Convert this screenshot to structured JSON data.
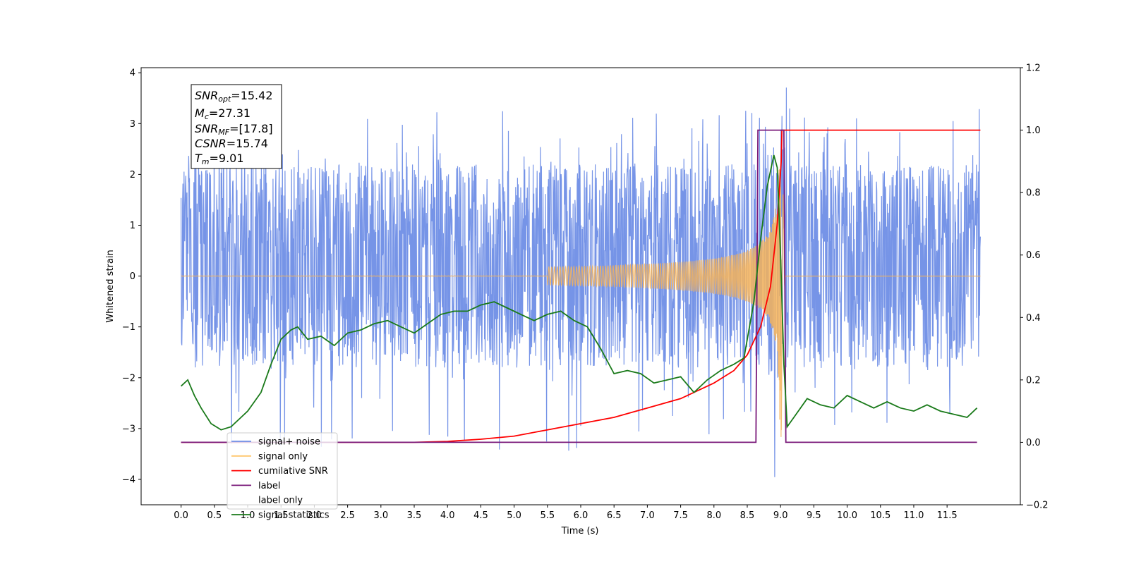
{
  "chart_data": {
    "type": "line",
    "xlabel": "Time (s)",
    "ylabel": "Whitened strain",
    "xlim": [
      -0.6,
      12.6
    ],
    "ylim": [
      -4.5,
      4.1
    ],
    "y2lim": [
      -0.2,
      1.2
    ],
    "x_ticks": [
      "0.0",
      "0.5",
      "1.0",
      "1.5",
      "2.0",
      "2.5",
      "3.0",
      "3.5",
      "4.0",
      "4.5",
      "5.0",
      "5.5",
      "6.0",
      "6.5",
      "7.0",
      "7.5",
      "8.0",
      "8.5",
      "9.0",
      "9.5",
      "10.0",
      "10.5",
      "11.0",
      "11.5"
    ],
    "y_ticks": [
      "4",
      "3",
      "2",
      "1",
      "0",
      "−1",
      "−2",
      "−3",
      "−4"
    ],
    "y2_ticks": [
      "1.2",
      "1.0",
      "0.8",
      "0.6",
      "0.4",
      "0.2",
      "0.0",
      "−0.2"
    ],
    "annotation": {
      "snr_opt": {
        "base": "SNR",
        "sub": "opt",
        "value": "=15.42"
      },
      "mc": {
        "base": "M",
        "sub": "c",
        "value": "=27.31"
      },
      "snr_mf": {
        "base": "SNR",
        "sub": "MF",
        "value": "=[17.8]"
      },
      "csnr": {
        "base": "CSNR",
        "sub": "",
        "value": "=15.74"
      },
      "tm": {
        "base": "T",
        "sub": "m",
        "value": "=9.01"
      }
    },
    "legend": {
      "placement": "lower-left",
      "entries": [
        "signal+ noise",
        "signal only",
        "cumilative SNR",
        "label",
        "label only",
        "signal statistics"
      ]
    },
    "series": [
      {
        "name": "signal+ noise",
        "axis": "left",
        "color": "#6f8ee6",
        "kind": "noise",
        "x_range": [
          0.0,
          12.0
        ],
        "typical_range": [
          -1.6,
          2.2
        ],
        "peak_range": [
          -4.1,
          3.7
        ]
      },
      {
        "name": "signal only",
        "axis": "left",
        "color": "#f5b35a",
        "kind": "chirp",
        "merger_time": 9.01,
        "peak_amplitude": 3.2,
        "end": 12.0
      },
      {
        "name": "cumilative SNR",
        "axis": "right",
        "color": "#ff0000",
        "x": [
          0.0,
          3.5,
          4.0,
          4.5,
          5.0,
          5.5,
          6.0,
          6.5,
          7.0,
          7.5,
          8.0,
          8.3,
          8.5,
          8.7,
          8.85,
          8.95,
          9.01,
          9.02,
          12.0
        ],
        "y": [
          0.0,
          0.0,
          0.003,
          0.01,
          0.02,
          0.04,
          0.06,
          0.08,
          0.11,
          0.14,
          0.19,
          0.23,
          0.28,
          0.37,
          0.5,
          0.7,
          0.9,
          1.0,
          1.0
        ]
      },
      {
        "name": "label",
        "axis": "right",
        "color": "#7a1a7a",
        "x": [
          0.0,
          8.63,
          8.66,
          8.97,
          9.05,
          9.08,
          11.95
        ],
        "y": [
          0.0,
          0.0,
          1.0,
          1.0,
          1.0,
          0.0,
          0.0
        ]
      },
      {
        "name": "signal statistics",
        "axis": "right",
        "color": "#1a7a1a",
        "x": [
          0.0,
          0.1,
          0.2,
          0.3,
          0.45,
          0.6,
          0.75,
          0.9,
          1.0,
          1.1,
          1.2,
          1.35,
          1.5,
          1.65,
          1.75,
          1.9,
          2.1,
          2.3,
          2.5,
          2.7,
          2.9,
          3.1,
          3.3,
          3.5,
          3.7,
          3.9,
          4.1,
          4.3,
          4.5,
          4.7,
          4.9,
          5.1,
          5.3,
          5.5,
          5.7,
          5.9,
          6.1,
          6.3,
          6.5,
          6.7,
          6.9,
          7.1,
          7.3,
          7.5,
          7.7,
          7.9,
          8.1,
          8.3,
          8.45,
          8.6,
          8.7,
          8.8,
          8.9,
          8.95,
          9.0,
          9.05,
          9.1,
          9.2,
          9.4,
          9.6,
          9.8,
          10.0,
          10.2,
          10.4,
          10.6,
          10.8,
          11.0,
          11.2,
          11.4,
          11.6,
          11.8,
          11.95
        ],
        "y": [
          0.18,
          0.2,
          0.15,
          0.11,
          0.06,
          0.04,
          0.05,
          0.08,
          0.1,
          0.13,
          0.16,
          0.25,
          0.33,
          0.36,
          0.37,
          0.33,
          0.34,
          0.31,
          0.35,
          0.36,
          0.38,
          0.39,
          0.37,
          0.35,
          0.38,
          0.41,
          0.42,
          0.42,
          0.44,
          0.45,
          0.43,
          0.41,
          0.39,
          0.41,
          0.42,
          0.39,
          0.37,
          0.3,
          0.22,
          0.23,
          0.22,
          0.19,
          0.2,
          0.21,
          0.16,
          0.2,
          0.23,
          0.25,
          0.27,
          0.45,
          0.65,
          0.82,
          0.92,
          0.88,
          0.6,
          0.25,
          0.05,
          0.08,
          0.14,
          0.12,
          0.11,
          0.15,
          0.13,
          0.11,
          0.13,
          0.11,
          0.1,
          0.12,
          0.1,
          0.09,
          0.08,
          0.11
        ]
      }
    ]
  }
}
